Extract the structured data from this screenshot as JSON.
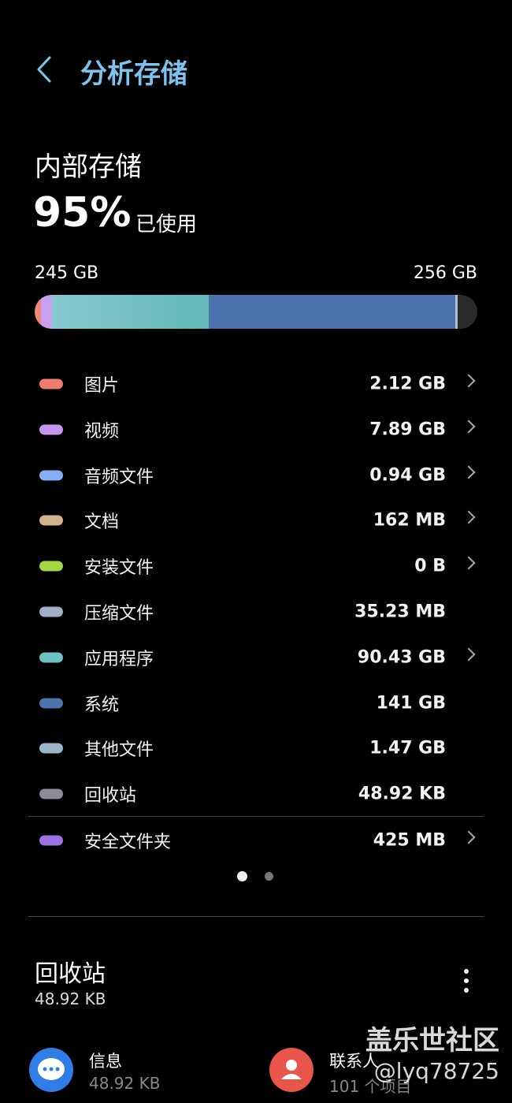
{
  "header": {
    "title": "分析存储"
  },
  "storage": {
    "title": "内部存储",
    "percent": "95%",
    "used_label": "已使用",
    "used": "245 GB",
    "total": "256 GB"
  },
  "categories": [
    {
      "name": "图片",
      "size": "2.12 GB",
      "color": "#ee7b6e",
      "arrow": true
    },
    {
      "name": "视频",
      "size": "7.89 GB",
      "color": "#c596ee",
      "arrow": true
    },
    {
      "name": "音频文件",
      "size": "0.94 GB",
      "color": "#85aef7",
      "arrow": true
    },
    {
      "name": "文档",
      "size": "162 MB",
      "color": "#d1b38e",
      "arrow": true
    },
    {
      "name": "安装文件",
      "size": "0 B",
      "color": "#a3d843",
      "arrow": true
    },
    {
      "name": "压缩文件",
      "size": "35.23 MB",
      "color": "#a2aec5",
      "arrow": false
    },
    {
      "name": "应用程序",
      "size": "90.43 GB",
      "color": "#6cc3c3",
      "arrow": true
    },
    {
      "name": "系统",
      "size": "141 GB",
      "color": "#4d72ad",
      "arrow": false
    },
    {
      "name": "其他文件",
      "size": "1.47 GB",
      "color": "#99b6c9",
      "arrow": false
    },
    {
      "name": "回收站",
      "size": "48.92 KB",
      "color": "#8a8d96",
      "arrow": false
    }
  ],
  "secure_folder": {
    "name": "安全文件夹",
    "size": "425 MB",
    "color": "#9a72e6",
    "arrow": true
  },
  "trash": {
    "title": "回收站",
    "size": "48.92 KB",
    "items": [
      {
        "name": "信息",
        "detail": "48.92 KB"
      },
      {
        "name": "联系人",
        "detail": "101 个项目"
      }
    ]
  },
  "watermark": {
    "site": "盖乐世社区",
    "user": "@lyq78725"
  }
}
